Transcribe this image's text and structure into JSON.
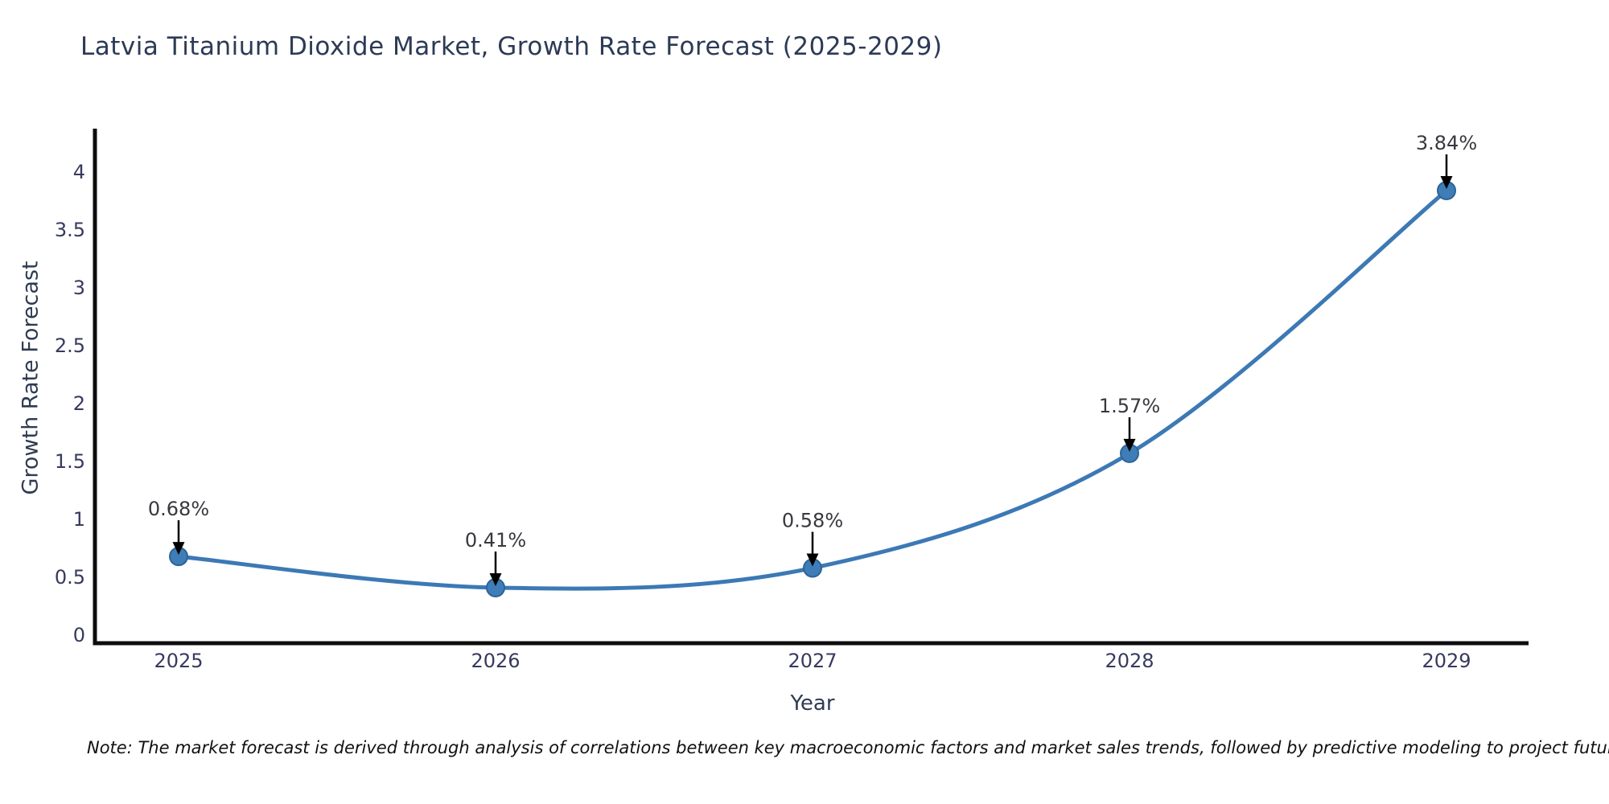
{
  "title": "Latvia Titanium Dioxide Market, Growth Rate Forecast (2025-2029)",
  "note": "Note: The market forecast is derived through analysis of correlations between key macroeconomic factors and market sales trends, followed by predictive modeling to project future sales",
  "colors": {
    "line": "#3c79b5",
    "marker_fill": "#3f7db8",
    "marker_edge": "#2e6396",
    "axis_spine": "#0d0d0d",
    "tick_text": "#373a5e",
    "annotation_text": "#38383f",
    "arrow": "#000000",
    "title_text": "#2c3a55",
    "background": "#ffffff"
  },
  "chart_data": {
    "type": "line",
    "title": "Latvia Titanium Dioxide Market, Growth Rate Forecast (2025-2029)",
    "xlabel": "Year",
    "ylabel": "Growth Rate Forecast",
    "x": [
      2025,
      2026,
      2027,
      2028,
      2029
    ],
    "values": [
      0.68,
      0.41,
      0.58,
      1.57,
      3.84
    ],
    "point_labels": [
      "0.68%",
      "0.41%",
      "0.58%",
      "1.57%",
      "3.84%"
    ],
    "yticks": [
      0,
      0.5,
      1,
      1.5,
      2,
      2.5,
      3,
      3.5,
      4
    ],
    "ytick_labels": [
      "0",
      "0.5",
      "1",
      "1.5",
      "2",
      "2.5",
      "3",
      "3.5",
      "4"
    ],
    "ylim": [
      0,
      4.4
    ],
    "line_shape": "spline",
    "grid": false,
    "legend": "none",
    "annotation_style": "value-label-with-down-arrow"
  }
}
